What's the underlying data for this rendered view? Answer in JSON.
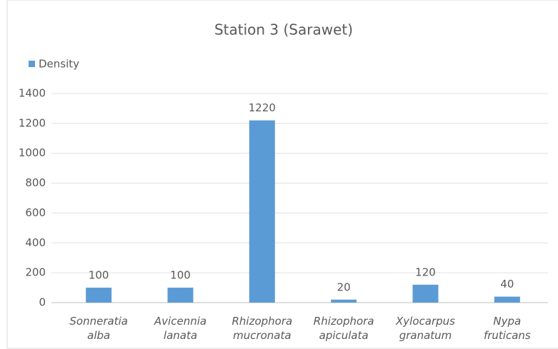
{
  "chart_data": {
    "type": "bar",
    "title": "Station 3 (Sarawet)",
    "categories": [
      "Sonneratia alba",
      "Avicennia lanata",
      "Rhizophora mucronata",
      "Rhizophora apiculata",
      "Xylocarpus granatum",
      "Nypa fruticans"
    ],
    "series": [
      {
        "name": "Density",
        "color": "#5b9bd5",
        "values": [
          100,
          100,
          1220,
          20,
          120,
          40
        ]
      }
    ],
    "ylim": [
      0,
      1400
    ],
    "yticks": [
      0,
      200,
      400,
      600,
      800,
      1000,
      1200,
      1400
    ],
    "grid": true,
    "legend": "top-left"
  }
}
